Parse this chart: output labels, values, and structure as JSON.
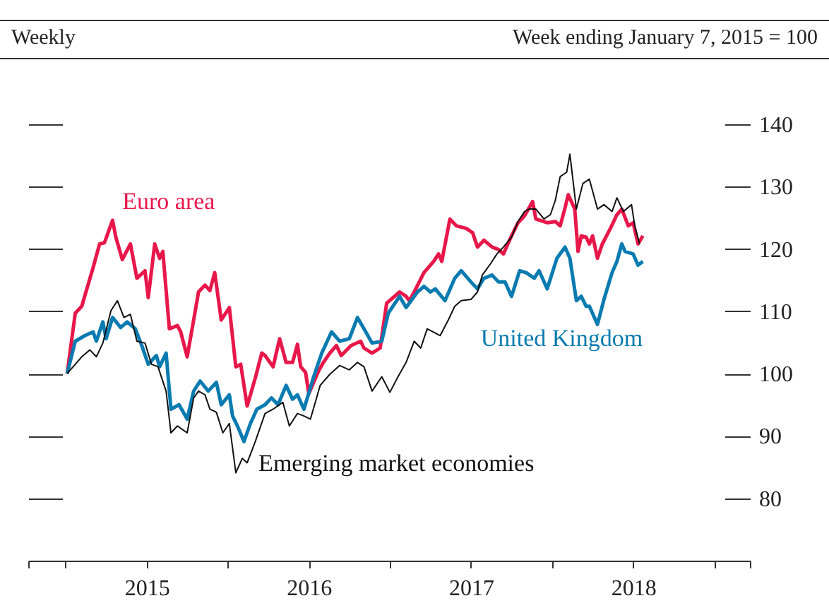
{
  "chart_data": {
    "type": "line",
    "title": "Weekly",
    "ylabel": "Week ending January 7, 2015 = 100",
    "xlim": [
      2014.77,
      2019.22
    ],
    "xticks": [
      {
        "value": 2014.77,
        "label": null
      },
      {
        "value": 2015,
        "label": null
      },
      {
        "value": 2015.5,
        "label": "2015"
      },
      {
        "value": 2016,
        "label": null
      },
      {
        "value": 2016.5,
        "label": "2016"
      },
      {
        "value": 2017,
        "label": null
      },
      {
        "value": 2017.5,
        "label": "2017"
      },
      {
        "value": 2018,
        "label": null
      },
      {
        "value": 2018.5,
        "label": "2018"
      },
      {
        "value": 2019,
        "label": null
      },
      {
        "value": 2019.22,
        "label": null
      }
    ],
    "ylim": [
      70,
      140
    ],
    "yticks": [
      80,
      90,
      100,
      110,
      120,
      130,
      140
    ],
    "grid": false,
    "marker": "none",
    "line_style": "solid",
    "series": [
      {
        "name": "Euro area",
        "color": "#e8174a",
        "x": [
          2015.01,
          2015.06,
          2015.1,
          2015.17,
          2015.21,
          2015.24,
          2015.29,
          2015.31,
          2015.35,
          2015.4,
          2015.44,
          2015.49,
          2015.51,
          2015.55,
          2015.58,
          2015.6,
          2015.64,
          2015.69,
          2015.71,
          2015.75,
          2015.79,
          2015.82,
          2015.86,
          2015.89,
          2015.92,
          2015.96,
          2016.01,
          2016.05,
          2016.08,
          2016.12,
          2016.17,
          2016.21,
          2016.23,
          2016.28,
          2016.32,
          2016.36,
          2016.4,
          2016.43,
          2016.45,
          2016.48,
          2016.5,
          2016.56,
          2016.59,
          2016.63,
          2016.67,
          2016.7,
          2016.76,
          2016.82,
          2016.84,
          2016.89,
          2016.94,
          2016.98,
          2017.06,
          2017.1,
          2017.12,
          2017.15,
          2017.21,
          2017.27,
          2017.3,
          2017.32,
          2017.37,
          2017.41,
          2017.47,
          2017.51,
          2017.54,
          2017.58,
          2017.63,
          2017.67,
          2017.7,
          2017.75,
          2017.79,
          2017.83,
          2017.88,
          2017.9,
          2017.97,
          2018.02,
          2018.05,
          2018.08,
          2018.1,
          2018.14,
          2018.16,
          2018.18,
          2018.21,
          2018.23,
          2018.25,
          2018.28,
          2018.31,
          2018.36,
          2018.4,
          2018.43,
          2018.47,
          2018.5,
          2018.53,
          2018.56
        ],
        "values": [
          100,
          109.7,
          110.8,
          117,
          120.8,
          121,
          124.6,
          121.9,
          118.3,
          120.8,
          115.3,
          116.5,
          112.2,
          120.8,
          118.5,
          119.6,
          107.2,
          107.7,
          106.7,
          102.7,
          108.6,
          113.1,
          114.2,
          113.3,
          116.2,
          108.6,
          110.6,
          101.1,
          101.5,
          94.8,
          99.3,
          103.3,
          102.9,
          101.1,
          105.6,
          101.8,
          101.8,
          104.7,
          101.1,
          100.2,
          96.8,
          100.4,
          101.8,
          103.3,
          104.5,
          102.9,
          104.5,
          105.2,
          104.1,
          103.3,
          104.1,
          111.3,
          113.1,
          112.4,
          111.7,
          113.1,
          116.2,
          118,
          119.2,
          118,
          124.8,
          123.7,
          123.3,
          122.6,
          120.3,
          121.4,
          120.3,
          119.9,
          119.2,
          122.1,
          124.2,
          125.3,
          127.6,
          124.8,
          124.2,
          124.4,
          123.7,
          126.6,
          128.7,
          126.4,
          119.6,
          122.1,
          121.9,
          120.8,
          122.1,
          118.5,
          120.8,
          123.3,
          125.5,
          126.4,
          123.7,
          124.2,
          120.8,
          122.1
        ]
      },
      {
        "name": "United Kingdom",
        "color": "#0a7bb0",
        "x": [
          2015.01,
          2015.06,
          2015.12,
          2015.17,
          2015.19,
          2015.23,
          2015.25,
          2015.29,
          2015.34,
          2015.38,
          2015.43,
          2015.47,
          2015.51,
          2015.56,
          2015.58,
          2015.62,
          2015.65,
          2015.7,
          2015.75,
          2015.79,
          2015.83,
          2015.88,
          2015.93,
          2015.96,
          2016.01,
          2016.03,
          2016.06,
          2016.1,
          2016.14,
          2016.18,
          2016.23,
          2016.27,
          2016.31,
          2016.36,
          2016.4,
          2016.43,
          2016.47,
          2016.53,
          2016.58,
          2016.64,
          2016.69,
          2016.75,
          2016.8,
          2016.84,
          2016.89,
          2016.95,
          2016.99,
          2017.06,
          2017.1,
          2017.17,
          2017.21,
          2017.25,
          2017.28,
          2017.34,
          2017.4,
          2017.44,
          2017.5,
          2017.54,
          2017.58,
          2017.63,
          2017.67,
          2017.71,
          2017.75,
          2017.8,
          2017.84,
          2017.89,
          2017.92,
          2017.97,
          2018.03,
          2018.08,
          2018.11,
          2018.15,
          2018.18,
          2018.21,
          2018.23,
          2018.28,
          2018.32,
          2018.37,
          2018.4,
          2018.43,
          2018.45,
          2018.5,
          2018.53,
          2018.56
        ],
        "values": [
          100,
          105.2,
          106.1,
          106.7,
          105.2,
          108.3,
          105.6,
          109,
          107.4,
          108.3,
          107.2,
          104.5,
          101.5,
          102.9,
          101.1,
          103.3,
          94.3,
          95,
          92.7,
          97.2,
          98.8,
          97.2,
          98.6,
          95,
          96.6,
          93.2,
          91.6,
          89.1,
          92,
          94.3,
          95,
          96.1,
          95,
          98.1,
          95.9,
          96.6,
          94.3,
          99.5,
          103.3,
          106.7,
          105.2,
          105.6,
          109,
          107.2,
          104.9,
          105.2,
          109.7,
          112.4,
          110.6,
          113.1,
          114,
          113.1,
          113.6,
          111.7,
          115.3,
          116.5,
          114.7,
          113.6,
          115.3,
          115.8,
          114.7,
          114.7,
          112.4,
          116.5,
          116.2,
          115.3,
          116.5,
          113.6,
          118.5,
          120.3,
          118.5,
          111.7,
          112.4,
          110.8,
          110.8,
          107.9,
          111.9,
          116.2,
          118,
          120.8,
          119.6,
          119.2,
          117.4,
          118
        ]
      },
      {
        "name": "Emerging market economies",
        "color": "#111111",
        "x": [
          2015.01,
          2015.06,
          2015.1,
          2015.15,
          2015.19,
          2015.23,
          2015.28,
          2015.32,
          2015.36,
          2015.4,
          2015.44,
          2015.49,
          2015.53,
          2015.57,
          2015.62,
          2015.65,
          2015.69,
          2015.75,
          2015.79,
          2015.82,
          2015.86,
          2015.89,
          2015.93,
          2015.97,
          2016.01,
          2016.05,
          2016.09,
          2016.12,
          2016.17,
          2016.23,
          2016.28,
          2016.34,
          2016.38,
          2016.43,
          2016.47,
          2016.51,
          2016.57,
          2016.63,
          2016.69,
          2016.75,
          2016.8,
          2016.84,
          2016.89,
          2016.95,
          2017.0,
          2017.05,
          2017.1,
          2017.15,
          2017.19,
          2017.23,
          2017.31,
          2017.36,
          2017.4,
          2017.44,
          2017.5,
          2017.54,
          2017.57,
          2017.62,
          2017.66,
          2017.7,
          2017.75,
          2017.79,
          2017.83,
          2017.86,
          2017.9,
          2017.95,
          2017.99,
          2018.02,
          2018.05,
          2018.09,
          2018.11,
          2018.15,
          2018.19,
          2018.23,
          2018.28,
          2018.32,
          2018.37,
          2018.4,
          2018.44,
          2018.49,
          2018.51,
          2018.54
        ],
        "values": [
          100,
          101.5,
          102.7,
          103.8,
          102.7,
          104.9,
          110.1,
          111.7,
          109,
          109.5,
          105.2,
          104.9,
          101.5,
          101.1,
          97.2,
          90.5,
          91.6,
          90.5,
          96.1,
          97.2,
          96.6,
          94.3,
          93.8,
          90.5,
          92,
          84.1,
          86.4,
          85.7,
          89.1,
          93.6,
          94.3,
          95.4,
          91.6,
          93.6,
          93.2,
          92.7,
          98.1,
          99.9,
          101.3,
          100.6,
          101.8,
          101.1,
          97.2,
          99.5,
          97,
          99.5,
          101.8,
          105.2,
          104.1,
          107.2,
          106.1,
          108.6,
          110.8,
          111.7,
          111.9,
          113.1,
          115.8,
          117.6,
          119.2,
          120.3,
          121.9,
          124.4,
          126,
          126.4,
          126.4,
          124.8,
          125.5,
          127.8,
          131.6,
          132.3,
          135.2,
          126.4,
          130.5,
          131.2,
          126.4,
          127.1,
          126,
          128.2,
          126,
          127.1,
          123.7,
          120.8
        ]
      }
    ]
  }
}
